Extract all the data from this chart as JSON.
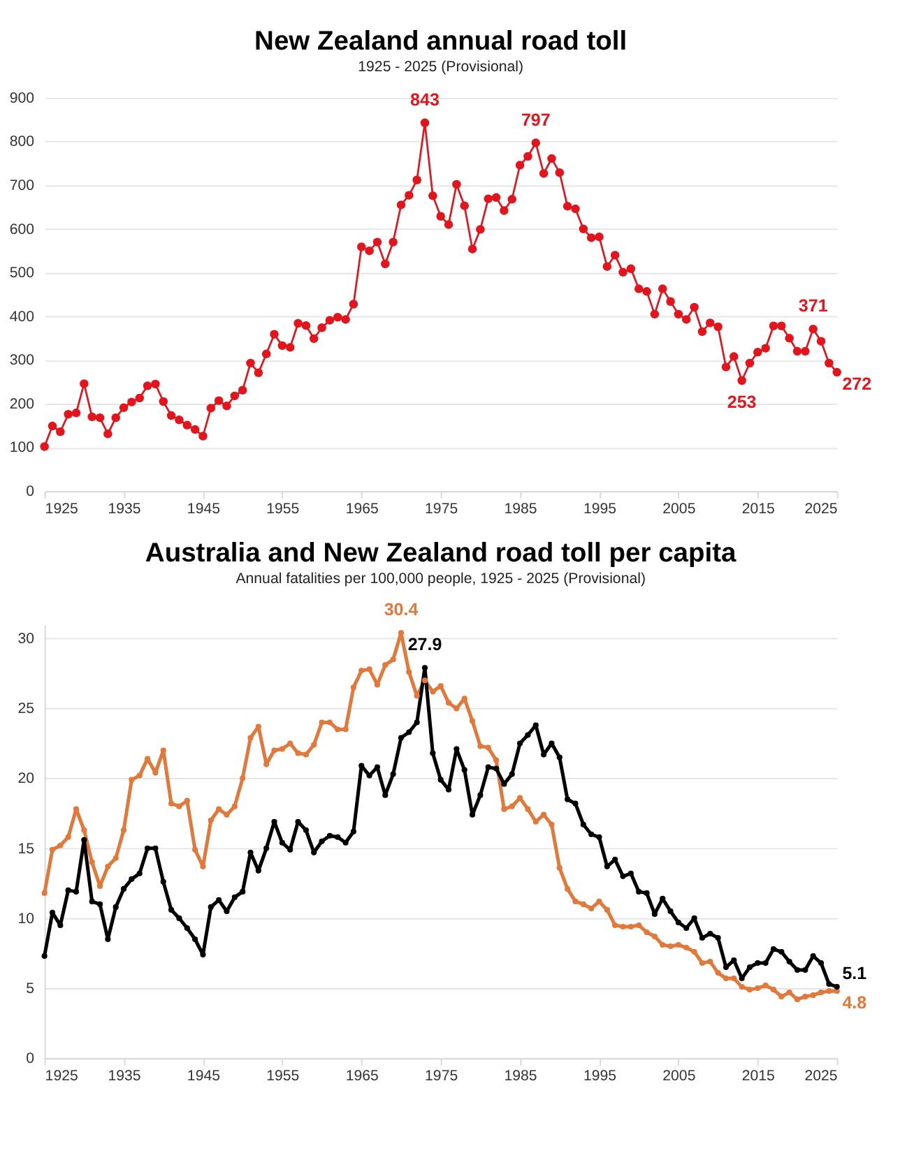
{
  "chart_data": [
    {
      "type": "line",
      "title": "New Zealand annual road toll",
      "subtitle": "1925 - 2025 (Provisional)",
      "x": [
        1925,
        1926,
        1927,
        1928,
        1929,
        1930,
        1931,
        1932,
        1933,
        1934,
        1935,
        1936,
        1937,
        1938,
        1939,
        1940,
        1941,
        1942,
        1943,
        1944,
        1945,
        1946,
        1947,
        1948,
        1949,
        1950,
        1951,
        1952,
        1953,
        1954,
        1955,
        1956,
        1957,
        1958,
        1959,
        1960,
        1961,
        1962,
        1963,
        1964,
        1965,
        1966,
        1967,
        1968,
        1969,
        1970,
        1971,
        1972,
        1973,
        1974,
        1975,
        1976,
        1977,
        1978,
        1979,
        1980,
        1981,
        1982,
        1983,
        1984,
        1985,
        1986,
        1987,
        1988,
        1989,
        1990,
        1991,
        1992,
        1993,
        1994,
        1995,
        1996,
        1997,
        1998,
        1999,
        2000,
        2001,
        2002,
        2003,
        2004,
        2005,
        2006,
        2007,
        2008,
        2009,
        2010,
        2011,
        2012,
        2013,
        2014,
        2015,
        2016,
        2017,
        2018,
        2019,
        2020,
        2021,
        2022,
        2023,
        2024,
        2025
      ],
      "series": [
        {
          "color": "#e3141b",
          "values": [
            102,
            149,
            136,
            176,
            179,
            246,
            170,
            168,
            131,
            168,
            191,
            204,
            213,
            241,
            245,
            205,
            173,
            163,
            151,
            141,
            126,
            190,
            207,
            195,
            218,
            231,
            293,
            271,
            314,
            359,
            333,
            329,
            384,
            379,
            349,
            374,
            391,
            398,
            393,
            428,
            559,
            550,
            570,
            520,
            570,
            655,
            677,
            712,
            843,
            676,
            629,
            610,
            702,
            653,
            554,
            599,
            669,
            672,
            642,
            668,
            746,
            766,
            797,
            727,
            761,
            729,
            652,
            646,
            600,
            580,
            582,
            514,
            540,
            501,
            509,
            463,
            457,
            405,
            463,
            434,
            405,
            393,
            421,
            365,
            385,
            376,
            284,
            308,
            253,
            293,
            318,
            327,
            378,
            378,
            350,
            320,
            320,
            371,
            343,
            293,
            272
          ],
          "value_labels": [
            null,
            null,
            null,
            null,
            null,
            null,
            null,
            null,
            null,
            null,
            null,
            null,
            null,
            null,
            null,
            null,
            null,
            null,
            null,
            null,
            null,
            null,
            null,
            null,
            null,
            null,
            null,
            null,
            null,
            null,
            null,
            null,
            null,
            null,
            null,
            null,
            null,
            null,
            null,
            null,
            null,
            null,
            null,
            null,
            null,
            null,
            null,
            null,
            "843",
            null,
            null,
            null,
            null,
            null,
            null,
            null,
            null,
            null,
            null,
            null,
            null,
            null,
            "797",
            null,
            null,
            null,
            null,
            null,
            null,
            null,
            null,
            null,
            null,
            null,
            null,
            null,
            null,
            null,
            null,
            null,
            null,
            null,
            null,
            null,
            null,
            null,
            null,
            null,
            "253",
            null,
            null,
            null,
            null,
            null,
            null,
            null,
            null,
            "371",
            null,
            null,
            "272"
          ]
        }
      ],
      "xlim": [
        1925,
        2025
      ],
      "xticks": [
        1925,
        1935,
        1945,
        1955,
        1965,
        1975,
        1985,
        1995,
        2005,
        2015,
        2025
      ],
      "ylim": [
        0,
        900
      ],
      "yticks": [
        0,
        100,
        200,
        300,
        400,
        500,
        600,
        700,
        800,
        900
      ],
      "grid": "y",
      "legend": false,
      "marker": "circle",
      "line_style": "solid"
    },
    {
      "type": "line",
      "title": "Australia and New Zealand road toll per capita",
      "subtitle": "Annual fatalities per 100,000 people, 1925 - 2025 (Provisional)",
      "x": [
        1925,
        1926,
        1927,
        1928,
        1929,
        1930,
        1931,
        1932,
        1933,
        1934,
        1935,
        1936,
        1937,
        1938,
        1939,
        1940,
        1941,
        1942,
        1943,
        1944,
        1945,
        1946,
        1947,
        1948,
        1949,
        1950,
        1951,
        1952,
        1953,
        1954,
        1955,
        1956,
        1957,
        1958,
        1959,
        1960,
        1961,
        1962,
        1963,
        1964,
        1965,
        1966,
        1967,
        1968,
        1969,
        1970,
        1971,
        1972,
        1973,
        1974,
        1975,
        1976,
        1977,
        1978,
        1979,
        1980,
        1981,
        1982,
        1983,
        1984,
        1985,
        1986,
        1987,
        1988,
        1989,
        1990,
        1991,
        1992,
        1993,
        1994,
        1995,
        1996,
        1997,
        1998,
        1999,
        2000,
        2001,
        2002,
        2003,
        2004,
        2005,
        2006,
        2007,
        2008,
        2009,
        2010,
        2011,
        2012,
        2013,
        2014,
        2015,
        2016,
        2017,
        2018,
        2019,
        2020,
        2021,
        2022,
        2023,
        2024,
        2025
      ],
      "series": [
        {
          "color": "#e2783a",
          "values": [
            11.8,
            14.9,
            15.2,
            15.8,
            17.8,
            16.3,
            14.0,
            12.3,
            13.7,
            14.3,
            16.3,
            19.9,
            20.2,
            21.4,
            20.4,
            22.0,
            18.2,
            18.0,
            18.4,
            14.9,
            13.7,
            17.0,
            17.8,
            17.4,
            18.0,
            20.0,
            22.9,
            23.7,
            21.0,
            22.0,
            22.1,
            22.5,
            21.8,
            21.7,
            22.4,
            24.0,
            24.0,
            23.5,
            23.5,
            26.5,
            27.7,
            27.8,
            26.7,
            28.1,
            28.5,
            30.4,
            27.6,
            25.9,
            27.0,
            26.2,
            26.6,
            25.4,
            25.0,
            25.7,
            24.1,
            22.3,
            22.2,
            21.3,
            17.8,
            18.0,
            18.6,
            17.8,
            16.9,
            17.4,
            16.7,
            13.6,
            12.1,
            11.2,
            11.0,
            10.7,
            11.2,
            10.6,
            9.5,
            9.4,
            9.4,
            9.5,
            9.0,
            8.7,
            8.1,
            8.0,
            8.1,
            7.9,
            7.6,
            6.8,
            6.9,
            6.1,
            5.7,
            5.7,
            5.1,
            4.9,
            5.0,
            5.2,
            4.9,
            4.4,
            4.7,
            4.2,
            4.4,
            4.5,
            4.7,
            4.8,
            4.8
          ],
          "value_labels": [
            null,
            null,
            null,
            null,
            null,
            null,
            null,
            null,
            null,
            null,
            null,
            null,
            null,
            null,
            null,
            null,
            null,
            null,
            null,
            null,
            null,
            null,
            null,
            null,
            null,
            null,
            null,
            null,
            null,
            null,
            null,
            null,
            null,
            null,
            null,
            null,
            null,
            null,
            null,
            null,
            null,
            null,
            null,
            null,
            null,
            "30.4",
            null,
            null,
            null,
            null,
            null,
            null,
            null,
            null,
            null,
            null,
            null,
            null,
            null,
            null,
            null,
            null,
            null,
            null,
            null,
            null,
            null,
            null,
            null,
            null,
            null,
            null,
            null,
            null,
            null,
            null,
            null,
            null,
            null,
            null,
            null,
            null,
            null,
            null,
            null,
            null,
            null,
            null,
            null,
            null,
            null,
            null,
            null,
            null,
            null,
            null,
            null,
            null,
            null,
            null,
            "4.8"
          ]
        },
        {
          "color": "#000000",
          "values": [
            7.3,
            10.4,
            9.5,
            12.0,
            11.9,
            15.6,
            11.2,
            11.0,
            8.5,
            10.8,
            12.1,
            12.8,
            13.2,
            15.0,
            15.0,
            12.6,
            10.6,
            10.0,
            9.3,
            8.5,
            7.4,
            10.8,
            11.3,
            10.5,
            11.5,
            11.9,
            14.7,
            13.4,
            15.0,
            16.9,
            15.4,
            14.9,
            16.9,
            16.3,
            14.7,
            15.5,
            15.9,
            15.8,
            15.4,
            16.2,
            20.9,
            20.2,
            20.8,
            18.8,
            20.3,
            22.9,
            23.3,
            24.0,
            27.9,
            21.8,
            19.9,
            19.2,
            22.1,
            20.6,
            17.4,
            18.8,
            20.8,
            20.7,
            19.6,
            20.3,
            22.5,
            23.1,
            23.8,
            21.7,
            22.5,
            21.5,
            18.5,
            18.2,
            16.7,
            16.0,
            15.8,
            13.7,
            14.2,
            13.0,
            13.2,
            11.9,
            11.8,
            10.3,
            11.4,
            10.5,
            9.7,
            9.3,
            10.0,
            8.6,
            8.9,
            8.6,
            6.5,
            7.0,
            5.7,
            6.5,
            6.8,
            6.8,
            7.8,
            7.6,
            6.9,
            6.3,
            6.3,
            7.3,
            6.8,
            5.3,
            5.1
          ],
          "value_labels": [
            null,
            null,
            null,
            null,
            null,
            null,
            null,
            null,
            null,
            null,
            null,
            null,
            null,
            null,
            null,
            null,
            null,
            null,
            null,
            null,
            null,
            null,
            null,
            null,
            null,
            null,
            null,
            null,
            null,
            null,
            null,
            null,
            null,
            null,
            null,
            null,
            null,
            null,
            null,
            null,
            null,
            null,
            null,
            null,
            null,
            null,
            null,
            null,
            "27.9",
            null,
            null,
            null,
            null,
            null,
            null,
            null,
            null,
            null,
            null,
            null,
            null,
            null,
            null,
            null,
            null,
            null,
            null,
            null,
            null,
            null,
            null,
            null,
            null,
            null,
            null,
            null,
            null,
            null,
            null,
            null,
            null,
            null,
            null,
            null,
            null,
            null,
            null,
            null,
            null,
            null,
            null,
            null,
            null,
            null,
            null,
            null,
            null,
            null,
            null,
            null,
            "5.1"
          ]
        }
      ],
      "xlim": [
        1925,
        2025
      ],
      "xticks": [
        1925,
        1935,
        1945,
        1955,
        1965,
        1975,
        1985,
        1995,
        2005,
        2015,
        2025
      ],
      "ylim": [
        0,
        31
      ],
      "yticks": [
        0,
        5,
        10,
        15,
        20,
        25,
        30
      ],
      "grid": "y",
      "legend": false,
      "marker": "circle",
      "line_style": "solid"
    }
  ]
}
